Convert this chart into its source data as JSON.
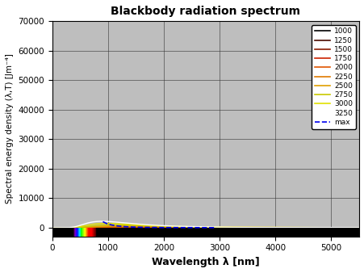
{
  "title": "Blackbody radiation spectrum",
  "xlabel": "Wavelength λ [nm]",
  "ylabel": "Spectral energy density (λ,T) [Jm⁻⁴]",
  "temperatures": [
    1000,
    1250,
    1500,
    1750,
    2000,
    2250,
    2500,
    2750,
    3000,
    3250
  ],
  "colors": [
    "#000000",
    "#4a0a00",
    "#8b1a00",
    "#cc2200",
    "#e05500",
    "#e07a00",
    "#e0a000",
    "#c8c800",
    "#e0e000",
    "#ffffff"
  ],
  "xlim": [
    0,
    5500
  ],
  "ylim_min": -3000,
  "ylim_max": 70000,
  "yticks": [
    0,
    10000,
    20000,
    30000,
    40000,
    50000,
    60000,
    70000
  ],
  "xticks": [
    0,
    1000,
    2000,
    3000,
    4000,
    5000
  ],
  "plot_bg_color": "#bebebe",
  "dashed_color": "#0000ee",
  "scale_factor": 1.0
}
